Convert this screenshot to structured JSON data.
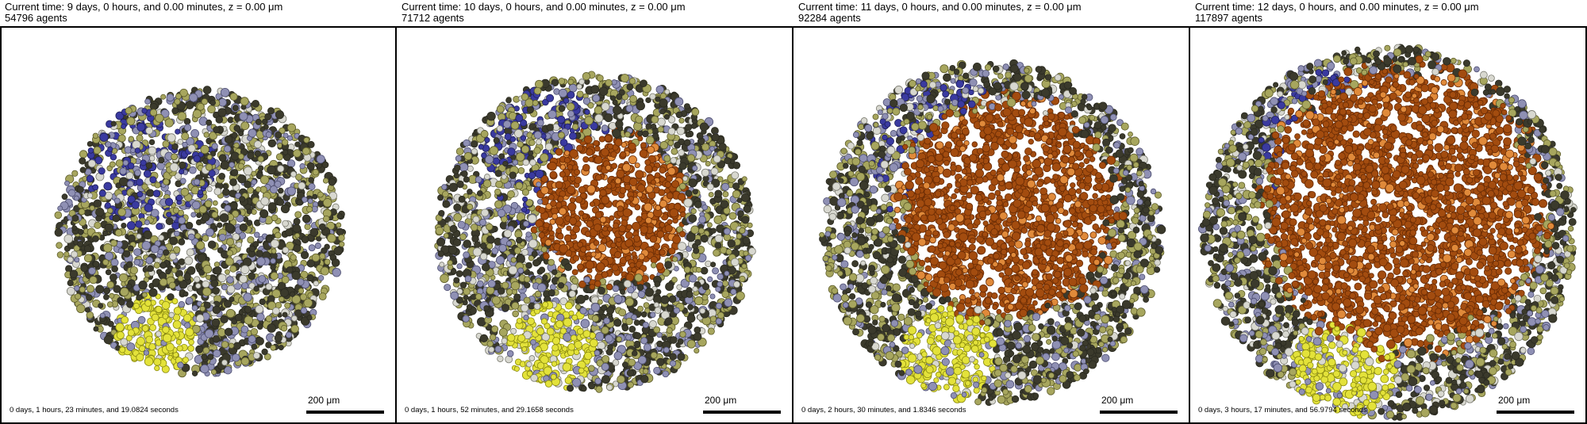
{
  "panels": [
    {
      "time_label": "Current time: 9 days, 0 hours, and 0.00 minutes, z = 0.00 μm",
      "agents_label": "54796 agents",
      "runtime_label": "0 days, 1 hours, 23 minutes, and 19.0824 seconds",
      "scale_label": "200 μm",
      "colony_radius_fraction": 0.36,
      "necrotic_core_radius_fraction": 0.0
    },
    {
      "time_label": "Current time: 10 days, 0 hours, and 0.00 minutes, z = 0.00 μm",
      "agents_label": "71712 agents",
      "runtime_label": "0 days, 1 hours, 52 minutes, and 29.1658 seconds",
      "scale_label": "200 μm",
      "colony_radius_fraction": 0.4,
      "necrotic_core_radius_fraction": 0.2
    },
    {
      "time_label": "Current time: 11 days, 0 hours, and 0.00 minutes, z = 0.00 μm",
      "agents_label": "92284 agents",
      "runtime_label": "0 days, 2 hours, 30 minutes, and 1.8346 seconds",
      "scale_label": "200 μm",
      "colony_radius_fraction": 0.43,
      "necrotic_core_radius_fraction": 0.29
    },
    {
      "time_label": "Current time: 12 days, 0 hours, and 0.00 minutes, z = 0.00 μm",
      "agents_label": "117897 agents",
      "runtime_label": "0 days, 3 hours, 17 minutes, and 56.9794 seconds",
      "scale_label": "200 μm",
      "colony_radius_fraction": 0.47,
      "necrotic_core_radius_fraction": 0.37
    }
  ],
  "colors": {
    "cell_dark": "#3b3a2c",
    "cell_olive": "#a7a65e",
    "cell_lavender": "#8f90b4",
    "cell_blue": "#3a3aa0",
    "cell_yellow": "#e3e23a",
    "necrotic": "#a34c0f",
    "necrotic_light": "#e08a3a",
    "background": "#ffffff"
  }
}
